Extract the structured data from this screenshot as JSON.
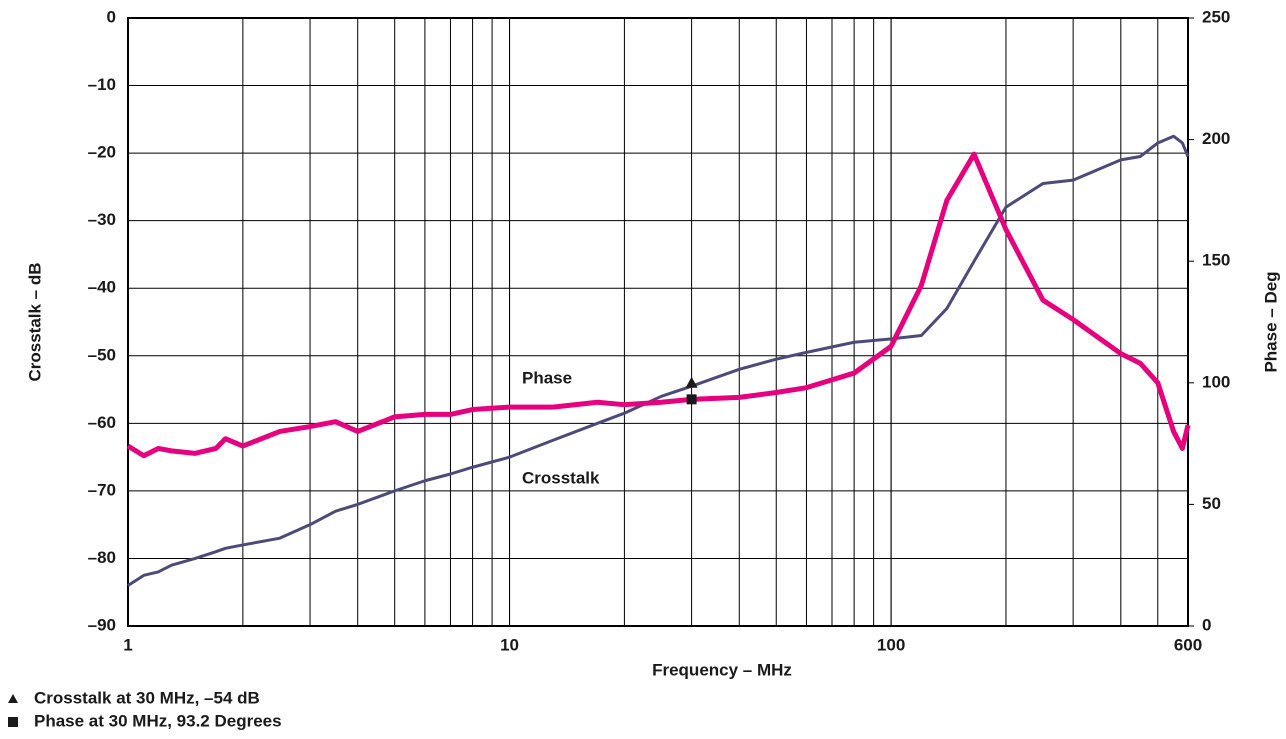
{
  "chart_data": {
    "type": "line",
    "xlabel": "Frequency – MHz",
    "ylabel": "Crosstalk – dB",
    "y2label": "Phase – Deg",
    "xscale": "log",
    "xlim": [
      1,
      600
    ],
    "xticks": [
      1,
      10,
      100,
      600
    ],
    "ylim": [
      -90,
      0
    ],
    "yticks": [
      {
        "value": -90,
        "label": "–90"
      },
      {
        "value": -80,
        "label": "–80"
      },
      {
        "value": -70,
        "label": "–70"
      },
      {
        "value": -60,
        "label": "–60"
      },
      {
        "value": -50,
        "label": "–50"
      },
      {
        "value": -40,
        "label": "–40"
      },
      {
        "value": -30,
        "label": "–30"
      },
      {
        "value": -20,
        "label": "–20"
      },
      {
        "value": -10,
        "label": "–10"
      },
      0
    ],
    "y2lim": [
      0,
      250
    ],
    "y2ticks": [
      0,
      50,
      100,
      150,
      200,
      250
    ],
    "grid": true,
    "x": [
      1,
      1.1,
      1.2,
      1.3,
      1.5,
      1.7,
      1.8,
      2,
      2.5,
      3,
      3.5,
      4,
      5,
      6,
      7,
      8,
      10,
      13,
      17,
      20,
      25,
      30,
      40,
      50,
      60,
      80,
      100,
      120,
      140,
      165,
      200,
      250,
      300,
      400,
      450,
      500,
      550,
      580,
      600
    ],
    "series": [
      {
        "name": "Crosstalk",
        "color": "#4b4a78",
        "axis": "y",
        "width": 3,
        "values": [
          -84,
          -82.5,
          -82,
          -81,
          -80,
          -79,
          -78.5,
          -78,
          -77,
          -75,
          -73,
          -72,
          -70,
          -68.5,
          -67.5,
          -66.5,
          -65,
          -62.5,
          -60,
          -58.5,
          -56,
          -54.5,
          -52,
          -50.5,
          -49.5,
          -48,
          -47.5,
          -47,
          -43,
          -36,
          -28,
          -24.5,
          -24,
          -21,
          -20.5,
          -18.5,
          -17.5,
          -18.5,
          -20.5
        ]
      },
      {
        "name": "Phase",
        "color": "#e6007e",
        "axis": "y2",
        "width": 5,
        "values": [
          74,
          70,
          73,
          72,
          71,
          73,
          77,
          74,
          80,
          82,
          84,
          80,
          86,
          87,
          87,
          89,
          90,
          90,
          92,
          91,
          92,
          93.2,
          94,
          96,
          98,
          104,
          115,
          140,
          175,
          194,
          163,
          134,
          126,
          112,
          108,
          100,
          80,
          73,
          82.6
        ]
      }
    ],
    "markers": [
      {
        "shape": "triangle",
        "x": 30,
        "value": -54,
        "axis": "y",
        "label": "Crosstalk at 30 MHz, –54 dB"
      },
      {
        "shape": "square",
        "x": 30,
        "value": 93.2,
        "axis": "y2",
        "label": "Phase at 30 MHz, 93.2 Degrees"
      }
    ]
  }
}
